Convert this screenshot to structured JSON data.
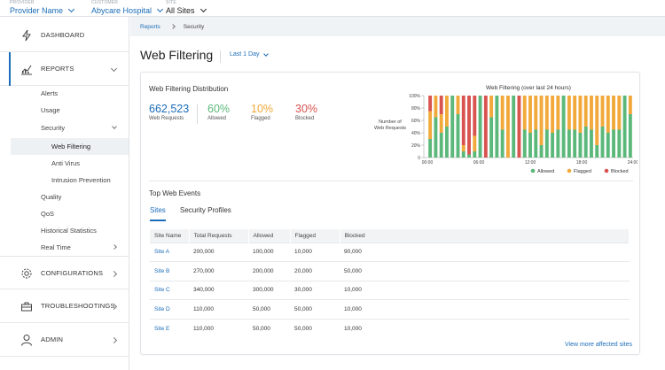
{
  "topbar": {
    "provider": {
      "label": "PROVIDER",
      "value": "Provider Name"
    },
    "customer": {
      "label": "CUSTOMER",
      "value": "Abycare Hospital"
    },
    "site": {
      "label": "SITE",
      "value": "All Sites"
    }
  },
  "sidebar": {
    "dashboard": "DASHBOARD",
    "reports": "REPORTS",
    "configurations": "CONFIGURATIONS",
    "troubleshootings": "TROUBLESHOOTINGS",
    "admin": "ADMIN",
    "sub": {
      "alerts": "Alerts",
      "usage": "Usage",
      "security": "Security",
      "web_filtering": "Web Filtering",
      "anti_virus": "Anti Virus",
      "intrusion_prevention": "Intrusion Prevention",
      "quality": "Quality",
      "qos": "QoS",
      "historical_statistics": "Historical Statistics",
      "real_time": "Real Time"
    }
  },
  "breadcrumb": {
    "root": "Reports",
    "current": "Security"
  },
  "page": {
    "title": "Web Filtering",
    "range": "Last 1 Day"
  },
  "distribution": {
    "title": "Web Filtering Distribution",
    "total": {
      "value": "662,523",
      "label": "Web Requests"
    },
    "allowed": {
      "value": "60%",
      "label": "Allowed"
    },
    "flagged": {
      "value": "10%",
      "label": "Flagged"
    },
    "blocked": {
      "value": "30%",
      "label": "Blocked"
    }
  },
  "colors": {
    "allowed": "#5cb87a",
    "flagged": "#f2a93b",
    "blocked": "#d9534f",
    "link": "#1b6cb8"
  },
  "chart_data": {
    "type": "bar",
    "stacked": true,
    "title": "Web Filtering (over last 24 hours)",
    "ylabel": "Number of Web Requests",
    "yticks": [
      "0",
      "20%",
      "40%",
      "60%",
      "80%",
      "100%"
    ],
    "xticks": [
      "00:00",
      "06:00",
      "12:00",
      "18:00",
      "24:00"
    ],
    "ylim": [
      0,
      100
    ],
    "legend": [
      "Allowed",
      "Flagged",
      "Blocked"
    ],
    "legend_position": "bottom-right",
    "series": [
      {
        "name": "Allowed",
        "values": [
          30,
          65,
          40,
          50,
          100,
          70,
          10,
          5,
          10,
          100,
          0,
          65,
          100,
          45,
          0,
          100,
          0,
          45,
          40,
          45,
          20,
          45,
          40,
          45,
          100,
          45,
          45,
          40,
          50,
          45,
          20,
          50,
          40,
          45,
          45,
          100,
          70
        ]
      },
      {
        "name": "Flagged",
        "values": [
          45,
          35,
          30,
          50,
          0,
          30,
          10,
          0,
          25,
          0,
          0,
          35,
          0,
          55,
          100,
          0,
          0,
          55,
          60,
          55,
          80,
          55,
          60,
          55,
          0,
          55,
          55,
          60,
          50,
          55,
          80,
          50,
          60,
          55,
          55,
          0,
          30
        ]
      },
      {
        "name": "Blocked",
        "values": [
          25,
          0,
          30,
          0,
          0,
          0,
          80,
          95,
          65,
          0,
          100,
          0,
          0,
          0,
          0,
          0,
          100,
          0,
          0,
          0,
          0,
          0,
          0,
          0,
          0,
          0,
          0,
          0,
          0,
          0,
          0,
          0,
          0,
          0,
          0,
          0,
          0
        ]
      }
    ]
  },
  "events": {
    "title": "Top Web Events",
    "tabs": [
      "Sites",
      "Security Profiles"
    ],
    "columns": [
      "Site Name",
      "Total Requests",
      "Allowed",
      "Flagged",
      "Blocked"
    ],
    "rows": [
      [
        "Site A",
        "200,000",
        "100,000",
        "10,000",
        "90,000"
      ],
      [
        "Site B",
        "270,000",
        "200,000",
        "20,000",
        "50,000"
      ],
      [
        "Site C",
        "340,000",
        "300,000",
        "30,000",
        "10,000"
      ],
      [
        "Site D",
        "110,000",
        "50,000",
        "50,000",
        "10,000"
      ],
      [
        "Site E",
        "110,000",
        "50,000",
        "50,000",
        "10,000"
      ]
    ],
    "view_more": "View more affected sites"
  }
}
